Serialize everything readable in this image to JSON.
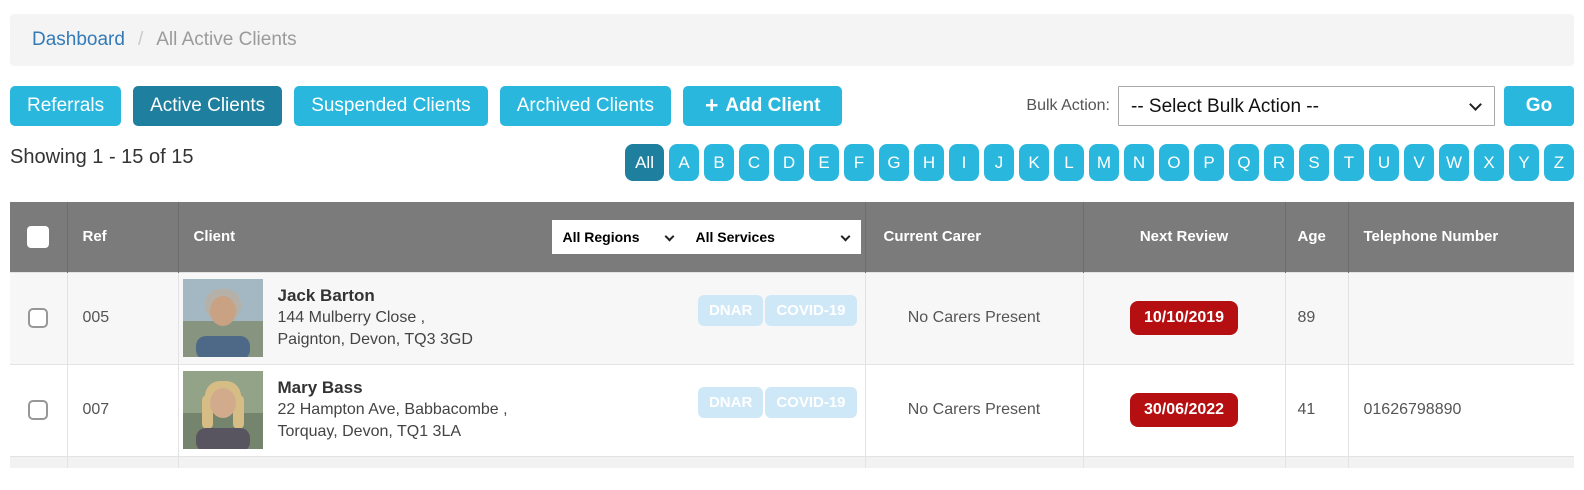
{
  "breadcrumb": {
    "link": "Dashboard",
    "separator": "/",
    "current": "All Active Clients"
  },
  "toolbar": {
    "tabs": [
      {
        "label": "Referrals",
        "active": false
      },
      {
        "label": "Active Clients",
        "active": true
      },
      {
        "label": "Suspended Clients",
        "active": false
      },
      {
        "label": "Archived Clients",
        "active": false
      }
    ],
    "add_client": {
      "icon_glyph": "+",
      "label": "Add Client"
    },
    "bulk_action": {
      "label": "Bulk Action:",
      "selected": "-- Select Bulk Action --",
      "go_label": "Go"
    }
  },
  "list_info": {
    "showing": "Showing 1 - 15 of 15"
  },
  "alpha_filter": {
    "selected": "All",
    "items": [
      "All",
      "A",
      "B",
      "C",
      "D",
      "E",
      "F",
      "G",
      "H",
      "I",
      "J",
      "K",
      "L",
      "M",
      "N",
      "O",
      "P",
      "Q",
      "R",
      "S",
      "T",
      "U",
      "V",
      "W",
      "X",
      "Y",
      "Z"
    ]
  },
  "table": {
    "headers": {
      "ref": "Ref",
      "client": "Client",
      "carer": "Current Carer",
      "review": "Next Review",
      "age": "Age",
      "phone": "Telephone Number"
    },
    "filters": {
      "regions": "All Regions",
      "services": "All Services"
    },
    "rows": [
      {
        "ref": "005",
        "name": "Jack Barton",
        "address1": "144 Mulberry Close ,",
        "address2": "Paignton, Devon, TQ3 3GD",
        "badges": [
          "DNAR",
          "COVID-19"
        ],
        "carer": "No Carers Present",
        "next_review": "10/10/2019",
        "age": "89",
        "phone": "",
        "avatar_colors": {
          "bg1": "#a3b8c2",
          "bg2": "#87947f",
          "hair": "#b5b1a9",
          "hairside": "rgba(0,0,0,0)",
          "skin": "#c9a183",
          "shirt": "#4e6887"
        }
      },
      {
        "ref": "007",
        "name": "Mary Bass",
        "address1": "22 Hampton Ave, Babbacombe ,",
        "address2": "Torquay, Devon, TQ1 3LA",
        "badges": [
          "DNAR",
          "COVID-19"
        ],
        "carer": "No Carers Present",
        "next_review": "30/06/2022",
        "age": "41",
        "phone": "01626798890",
        "avatar_colors": {
          "bg1": "#93a388",
          "bg2": "#75856d",
          "hair": "#d6bd85",
          "hairside": "#d6bd85",
          "skin": "#d2ab8d",
          "shirt": "#585460"
        }
      }
    ]
  },
  "colors": {
    "accent_blue": "#29b7dd",
    "active_teal": "#1f7f9f",
    "review_badge_red": "#b50f11",
    "flag_badge_blue": "#cfe8f7",
    "header_gray": "#7b7b7b",
    "link_blue": "#337ab7"
  }
}
